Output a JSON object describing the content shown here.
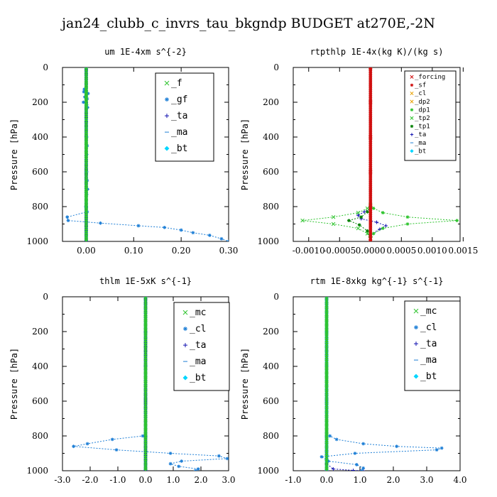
{
  "figure_title": "jan24_clubb_c_invrs_tau_bkgndp  BUDGET at270E,-2N",
  "colors": {
    "green": "#2fc42f",
    "blue": "#1e7fd6",
    "navy": "#1010b0",
    "cyan": "#00d6ff",
    "red": "#d01010",
    "orange": "#e8a000",
    "darkgreen": "#008000"
  },
  "chart_data": [
    {
      "type": "line",
      "title": "um  1E-4xm s^{-2}",
      "ylabel": "Pressure [hPa]",
      "xlim": [
        -0.05,
        0.3
      ],
      "ylim": [
        1000,
        0
      ],
      "xticks": [
        "0.00",
        "0.10",
        "0.20",
        "0.30"
      ],
      "yticks": [
        "0",
        "200",
        "400",
        "600",
        "800",
        "1000"
      ],
      "legend": [
        "_f",
        "_gf",
        "_ta",
        "_ma",
        "_bt"
      ],
      "series": [
        {
          "name": "_f",
          "x": [
            0,
            0,
            0,
            0,
            0,
            0,
            0,
            0,
            0,
            0,
            0,
            0,
            0,
            0,
            0,
            0,
            0,
            0,
            0,
            0,
            0,
            0,
            0,
            0,
            0,
            0,
            0,
            0,
            0,
            0,
            0,
            0,
            0,
            0,
            0,
            0,
            0,
            0,
            0,
            0,
            0
          ],
          "y": [
            0,
            25,
            50,
            75,
            100,
            125,
            150,
            175,
            200,
            225,
            250,
            275,
            300,
            325,
            350,
            375,
            400,
            425,
            450,
            475,
            500,
            525,
            550,
            575,
            600,
            625,
            650,
            675,
            700,
            725,
            750,
            775,
            800,
            825,
            850,
            875,
            900,
            925,
            950,
            975,
            1000
          ]
        },
        {
          "name": "_gf",
          "x": [
            0,
            0,
            -0.004,
            -0.005,
            0.004,
            -0.003,
            0.002,
            -0.006,
            0.001,
            0.003,
            0,
            0,
            0,
            0.001,
            0.002,
            0.001,
            0,
            0.001,
            0.002,
            0.003,
            0.001,
            0,
            -0.001,
            0.002,
            -0.04,
            -0.038,
            0.03,
            0.11,
            0.165,
            0.2,
            0.225,
            0.26,
            0.285,
            0.3
          ],
          "y": [
            0,
            100,
            125,
            140,
            150,
            170,
            180,
            200,
            215,
            230,
            250,
            300,
            350,
            400,
            450,
            500,
            550,
            600,
            650,
            700,
            730,
            760,
            800,
            830,
            860,
            880,
            895,
            910,
            920,
            935,
            950,
            965,
            985,
            1000
          ]
        },
        {
          "name": "_ta",
          "x": [
            0,
            0,
            0,
            0,
            0,
            0
          ],
          "y": [
            0,
            200,
            400,
            600,
            800,
            1000
          ]
        },
        {
          "name": "_ma",
          "x": [
            0,
            0,
            0,
            0,
            0,
            0
          ],
          "y": [
            0,
            200,
            400,
            600,
            800,
            1000
          ]
        },
        {
          "name": "_bt",
          "x": [
            0,
            0,
            0,
            0,
            0,
            0
          ],
          "y": [
            0,
            200,
            400,
            600,
            800,
            1000
          ]
        }
      ]
    },
    {
      "type": "line",
      "title": "rtpthlp  1E-4x(kg K)/(kg s)",
      "ylabel": "Pressure [hPa]",
      "xlim": [
        -0.00125,
        0.00145
      ],
      "ylim": [
        1000,
        0
      ],
      "xticks": [
        "-0.0010",
        "-0.0005",
        "0.0000",
        "0.0005",
        "0.0010",
        "0.0015"
      ],
      "yticks": [
        "0",
        "200",
        "400",
        "600",
        "800",
        "1000"
      ],
      "legend": [
        "_forcing",
        "_sf",
        "_cl",
        "_dp2",
        "_dp1",
        "_tp2",
        "_tp1",
        "_ta",
        "_ma",
        "_bt"
      ],
      "series": [
        {
          "name": "_forcing",
          "x": [
            0,
            0,
            0,
            0,
            0,
            0
          ],
          "y": [
            0,
            200,
            400,
            600,
            800,
            1000
          ]
        },
        {
          "name": "_sf",
          "x": [
            0,
            0,
            0,
            0,
            0,
            0
          ],
          "y": [
            0,
            200,
            400,
            600,
            800,
            1000
          ]
        },
        {
          "name": "_dp1",
          "x": [
            0,
            0,
            5e-05,
            0.0002,
            0.0006,
            0.0014,
            0.0006,
            0.0002,
            5e-05,
            0
          ],
          "y": [
            0,
            790,
            810,
            835,
            860,
            880,
            900,
            925,
            955,
            1000
          ]
        },
        {
          "name": "_tp2",
          "x": [
            0,
            0,
            -5e-05,
            -0.0002,
            -0.0006,
            -0.0011,
            -0.0006,
            -0.0002,
            -5e-05,
            0
          ],
          "y": [
            0,
            790,
            810,
            835,
            860,
            880,
            900,
            925,
            955,
            1000
          ]
        },
        {
          "name": "_tp1",
          "x": [
            0,
            0,
            -5e-05,
            -0.00015,
            -0.00035,
            -0.00018,
            -5e-05,
            0
          ],
          "y": [
            0,
            800,
            830,
            860,
            880,
            905,
            940,
            1000
          ]
        },
        {
          "name": "_ta",
          "x": [
            0,
            0,
            -0.0001,
            -0.0002,
            -0.00015,
            0.0001,
            0.00025,
            0.00015,
            0,
            0
          ],
          "y": [
            0,
            810,
            830,
            850,
            870,
            890,
            910,
            930,
            960,
            1000
          ]
        }
      ]
    },
    {
      "type": "line",
      "title": "thlm  1E-5xK s^{-1}",
      "ylabel": "Pressure [hPa]",
      "xlim": [
        -3.0,
        3.0
      ],
      "ylim": [
        1000,
        0
      ],
      "xticks": [
        "-3.0",
        "-2.0",
        "-1.0",
        "0.0",
        "1.0",
        "2.0",
        "3.0"
      ],
      "yticks": [
        "0",
        "200",
        "400",
        "600",
        "800",
        "1000"
      ],
      "legend": [
        "_mc",
        "_cl",
        "_ta",
        "_ma",
        "_bt"
      ],
      "series": [
        {
          "name": "_mc",
          "x": [
            0,
            0,
            0,
            0,
            0,
            0,
            0,
            0,
            0,
            0,
            0,
            0,
            0,
            0,
            0,
            0,
            0,
            0,
            0,
            0,
            0,
            0,
            0,
            0,
            0,
            0,
            0,
            0,
            0,
            0,
            0,
            0,
            0,
            0,
            0,
            0,
            0,
            0,
            0,
            0,
            0
          ],
          "y": [
            0,
            25,
            50,
            75,
            100,
            125,
            150,
            175,
            200,
            225,
            250,
            275,
            300,
            325,
            350,
            375,
            400,
            425,
            450,
            475,
            500,
            525,
            550,
            575,
            600,
            625,
            650,
            675,
            700,
            725,
            750,
            775,
            800,
            825,
            850,
            875,
            900,
            925,
            950,
            975,
            1000
          ]
        },
        {
          "name": "_cl",
          "x": [
            0,
            0,
            -0.1,
            -1.2,
            -2.1,
            -2.6,
            -1.05,
            0.9,
            2.65,
            2.95,
            1.3,
            0.9,
            1.2,
            1.9,
            1.8
          ],
          "y": [
            0,
            780,
            800,
            820,
            845,
            860,
            880,
            900,
            915,
            930,
            945,
            960,
            975,
            990,
            1000
          ]
        },
        {
          "name": "_ta",
          "x": [
            0,
            0,
            0,
            0,
            0,
            0
          ],
          "y": [
            0,
            200,
            400,
            600,
            800,
            1000
          ]
        },
        {
          "name": "_ma",
          "x": [
            0,
            0,
            0,
            0,
            0,
            0
          ],
          "y": [
            0,
            200,
            400,
            600,
            800,
            1000
          ]
        },
        {
          "name": "_bt",
          "x": [
            0,
            0,
            0,
            0,
            0,
            0
          ],
          "y": [
            0,
            200,
            400,
            600,
            800,
            1000
          ]
        }
      ]
    },
    {
      "type": "line",
      "title": "rtm  1E-8xkg kg^{-1} s^{-1}",
      "ylabel": "Pressure [hPa]",
      "xlim": [
        -1.0,
        4.0
      ],
      "ylim": [
        1000,
        0
      ],
      "xticks": [
        "-1.0",
        "0.0",
        "1.0",
        "2.0",
        "3.0",
        "4.0"
      ],
      "yticks": [
        "0",
        "200",
        "400",
        "600",
        "800",
        "1000"
      ],
      "legend": [
        "_mc",
        "_cl",
        "_ta",
        "_ma",
        "_bt"
      ],
      "series": [
        {
          "name": "_mc",
          "x": [
            0,
            0,
            0,
            0,
            0,
            0,
            0,
            0,
            0,
            0,
            0,
            0,
            0,
            0,
            0,
            0,
            0,
            0,
            0,
            0,
            0,
            0,
            0,
            0,
            0,
            0,
            0,
            0,
            0,
            0,
            0,
            0,
            0,
            0,
            0,
            0,
            0,
            0,
            0,
            0,
            0
          ],
          "y": [
            0,
            25,
            50,
            75,
            100,
            125,
            150,
            175,
            200,
            225,
            250,
            275,
            300,
            325,
            350,
            375,
            400,
            425,
            450,
            475,
            500,
            525,
            550,
            575,
            600,
            625,
            650,
            675,
            700,
            725,
            750,
            775,
            800,
            825,
            850,
            875,
            900,
            925,
            950,
            975,
            1000
          ]
        },
        {
          "name": "_cl",
          "x": [
            0,
            0,
            0.1,
            0.3,
            1.1,
            2.1,
            3.45,
            3.3,
            0.85,
            -0.15,
            0.05,
            0.9,
            1.1,
            1.05
          ],
          "y": [
            0,
            780,
            800,
            820,
            845,
            860,
            870,
            880,
            900,
            920,
            945,
            965,
            985,
            1000
          ]
        },
        {
          "name": "_ta",
          "x": [
            0,
            0,
            0,
            0.2,
            0.8,
            1.1
          ],
          "y": [
            0,
            800,
            960,
            990,
            998,
            1000
          ]
        },
        {
          "name": "_ma",
          "x": [
            0,
            0,
            0,
            0,
            0,
            0
          ],
          "y": [
            0,
            200,
            400,
            600,
            800,
            1000
          ]
        },
        {
          "name": "_bt",
          "x": [
            0,
            0,
            0,
            0,
            0,
            0
          ],
          "y": [
            0,
            200,
            400,
            600,
            800,
            1000
          ]
        }
      ]
    }
  ]
}
